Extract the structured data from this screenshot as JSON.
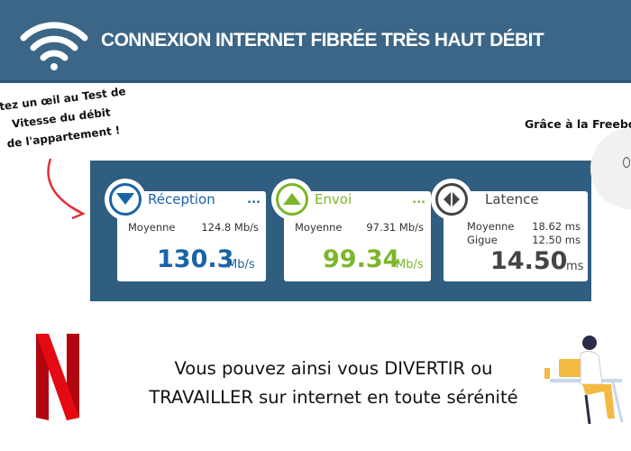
{
  "header": {
    "title": "CONNEXION INTERNET FIBRÉE TRÈS HAUT DÉBIT",
    "icon": "wifi-icon"
  },
  "note": {
    "lines": [
      "etez un œil au Test de",
      "Vitesse du débit",
      "de l'appartement !"
    ]
  },
  "grace_text": "Grâce à la Freebo",
  "speedtest": {
    "reception": {
      "label": "Réception",
      "more": "...",
      "avg_label": "Moyenne",
      "avg_value": "124.8 Mb/s",
      "value": "130.3",
      "unit": "Mb/s",
      "color": "#1a63a8"
    },
    "envoi": {
      "label": "Envoi",
      "more": "...",
      "avg_label": "Moyenne",
      "avg_value": "97.31 Mb/s",
      "value": "99.34",
      "unit": "Mb/s",
      "color": "#7cb62b"
    },
    "latence": {
      "label": "Latence",
      "avg_label": "Moyenne",
      "avg_value": "18.62 ms",
      "jitter_label": "Gigue",
      "jitter_value": "12.50 ms",
      "value": "14.50",
      "unit": "ms",
      "color": "#444444"
    }
  },
  "footer": {
    "line1": "Vous pouvez ainsi vous DIVERTIR ou",
    "line2": "TRAVAILLER sur internet en toute sérénité",
    "logo": "netflix-logo"
  }
}
